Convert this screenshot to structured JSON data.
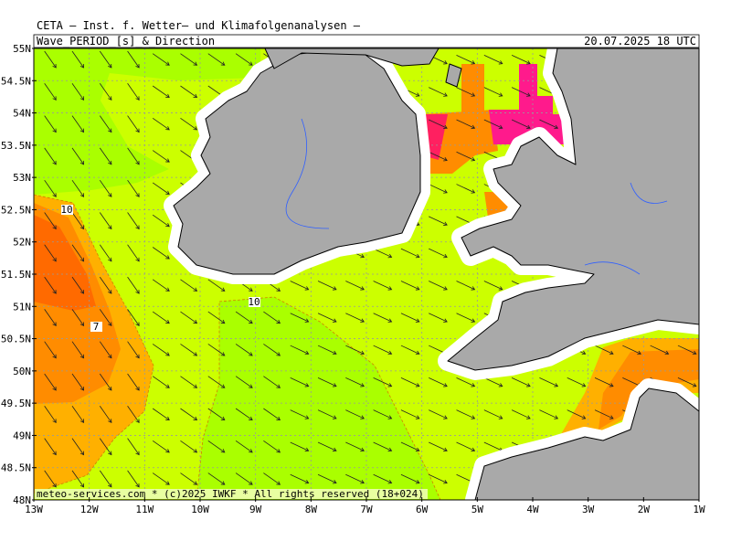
{
  "header": {
    "title": "CETA — Inst. f. Wetter— und Klimafolgenanalysen —",
    "parameter": "Wave_PERIOD_[s]_&_Direction",
    "valid": "20.07.2025 18 UTC"
  },
  "map": {
    "lat_labels": [
      "55N",
      "54.5N",
      "54N",
      "53.5N",
      "53N",
      "52.5N",
      "52N",
      "51.5N",
      "51N",
      "50.5N",
      "50N",
      "49.5N",
      "49N",
      "48.5N",
      "48N"
    ],
    "lon_labels": [
      "13W",
      "12W",
      "11W",
      "10W",
      "9W",
      "8W",
      "7W",
      "6W",
      "5W",
      "4W",
      "3W",
      "2W",
      "1W"
    ],
    "contour_labels": [
      "10",
      "7",
      "10"
    ]
  },
  "footer": "meteo-services.com * (c)2025 IWKF * All rights reserved (18+024)"
}
